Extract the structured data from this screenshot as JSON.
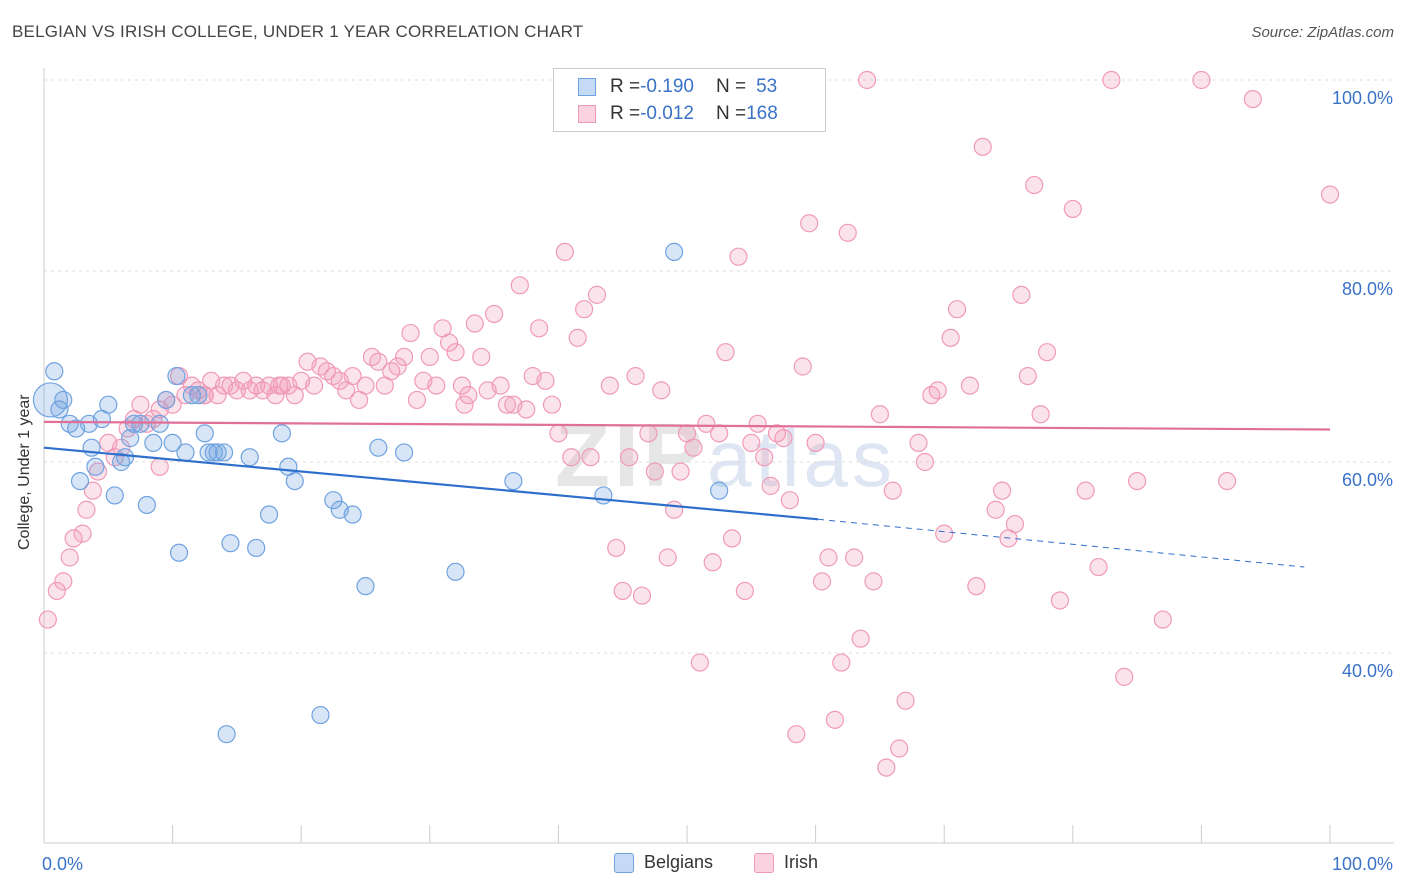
{
  "header": {
    "title": "BELGIAN VS IRISH COLLEGE, UNDER 1 YEAR CORRELATION CHART",
    "source": "Source: ZipAtlas.com"
  },
  "watermark": {
    "zip": "ZIP",
    "atlas": "atlas"
  },
  "legend": {
    "rows": [
      {
        "r_label": "R = ",
        "r_value": "-0.190",
        "n_label": "N = ",
        "n_value": "53"
      },
      {
        "r_label": "R = ",
        "r_value": "-0.012",
        "n_label": "N = ",
        "n_value": "168"
      }
    ]
  },
  "bottom_legend": {
    "belgians": "Belgians",
    "irish": "Irish"
  },
  "chart_data": {
    "type": "scatter",
    "title": "BELGIAN VS IRISH COLLEGE, UNDER 1 YEAR CORRELATION CHART",
    "ylabel": "College, Under 1 year",
    "xlabel": "",
    "xlim": [
      0,
      100
    ],
    "ylim": [
      20,
      102
    ],
    "x_tick_labels": [
      "0.0%",
      "100.0%"
    ],
    "y_ticks": [
      40,
      60,
      80,
      100
    ],
    "y_tick_labels": [
      "40.0%",
      "60.0%",
      "80.0%",
      "100.0%"
    ],
    "grid": true,
    "colors": {
      "belgians": "#6fa3e0",
      "irish": "#f09ab8",
      "belgians_line": "#2f6fcc",
      "irish_line": "#e0709a"
    },
    "series": [
      {
        "name": "Belgians",
        "trend": {
          "x": [
            0,
            60.2
          ],
          "y": [
            61.5,
            54.0
          ],
          "dashed_to_x": 98,
          "dashed_to_y": 49.0
        },
        "points": [
          [
            0.5,
            66.5
          ],
          [
            0.8,
            69.5
          ],
          [
            1.2,
            65.5
          ],
          [
            1.5,
            66.5
          ],
          [
            2,
            64
          ],
          [
            2.5,
            63.5
          ],
          [
            2.8,
            58
          ],
          [
            3.5,
            64
          ],
          [
            3.7,
            61.5
          ],
          [
            4,
            59.5
          ],
          [
            4.5,
            64.5
          ],
          [
            5,
            66
          ],
          [
            5.5,
            56.5
          ],
          [
            6,
            60
          ],
          [
            6.3,
            60.5
          ],
          [
            6.7,
            62.5
          ],
          [
            7,
            64
          ],
          [
            7.5,
            64
          ],
          [
            8,
            55.5
          ],
          [
            8.5,
            62
          ],
          [
            9,
            64
          ],
          [
            9.5,
            66.5
          ],
          [
            10,
            62
          ],
          [
            10.3,
            69
          ],
          [
            10.5,
            50.5
          ],
          [
            11,
            61
          ],
          [
            11.5,
            67
          ],
          [
            12,
            67
          ],
          [
            12.5,
            63
          ],
          [
            12.8,
            61
          ],
          [
            13.2,
            61
          ],
          [
            13.5,
            61
          ],
          [
            14,
            61
          ],
          [
            14.2,
            31.5
          ],
          [
            14.5,
            51.5
          ],
          [
            16,
            60.5
          ],
          [
            16.5,
            51
          ],
          [
            17.5,
            54.5
          ],
          [
            18.5,
            63
          ],
          [
            19,
            59.5
          ],
          [
            19.5,
            58
          ],
          [
            21.5,
            33.5
          ],
          [
            22.5,
            56
          ],
          [
            23,
            55
          ],
          [
            24,
            54.5
          ],
          [
            25,
            47
          ],
          [
            26,
            61.5
          ],
          [
            28,
            61
          ],
          [
            32,
            48.5
          ],
          [
            36.5,
            58
          ],
          [
            43.5,
            56.5
          ],
          [
            49,
            82
          ],
          [
            52.5,
            57
          ]
        ]
      },
      {
        "name": "Irish",
        "trend": {
          "x": [
            0,
            100
          ],
          "y": [
            64.2,
            63.4
          ]
        },
        "points": [
          [
            0.3,
            43.5
          ],
          [
            1,
            46.5
          ],
          [
            1.5,
            47.5
          ],
          [
            2,
            50
          ],
          [
            2.3,
            52
          ],
          [
            3,
            52.5
          ],
          [
            3.3,
            55
          ],
          [
            3.8,
            57
          ],
          [
            4.2,
            59
          ],
          [
            5,
            62
          ],
          [
            5.5,
            60.5
          ],
          [
            6,
            61.5
          ],
          [
            6.5,
            63.5
          ],
          [
            7,
            64.5
          ],
          [
            7.5,
            66
          ],
          [
            8,
            64
          ],
          [
            8.5,
            64.5
          ],
          [
            9,
            65.5
          ],
          [
            9.5,
            66.5
          ],
          [
            10,
            66
          ],
          [
            10.5,
            69
          ],
          [
            11,
            67
          ],
          [
            11.5,
            68
          ],
          [
            12,
            67.5
          ],
          [
            12.5,
            67
          ],
          [
            13,
            68.5
          ],
          [
            13.5,
            67
          ],
          [
            14,
            68
          ],
          [
            14.5,
            68
          ],
          [
            15,
            67.5
          ],
          [
            15.5,
            68.5
          ],
          [
            16,
            67.5
          ],
          [
            16.5,
            68
          ],
          [
            17,
            67.5
          ],
          [
            17.5,
            68
          ],
          [
            18,
            67
          ],
          [
            18.5,
            68
          ],
          [
            19,
            68
          ],
          [
            19.5,
            67
          ],
          [
            20,
            68.5
          ],
          [
            20.5,
            70.5
          ],
          [
            21,
            68
          ],
          [
            21.5,
            70
          ],
          [
            22,
            69.5
          ],
          [
            22.5,
            69
          ],
          [
            23,
            68.5
          ],
          [
            23.5,
            67.5
          ],
          [
            24,
            69
          ],
          [
            24.5,
            66.5
          ],
          [
            25,
            68
          ],
          [
            25.5,
            71
          ],
          [
            26,
            70.5
          ],
          [
            26.5,
            68
          ],
          [
            27,
            69.5
          ],
          [
            27.5,
            70
          ],
          [
            28,
            71
          ],
          [
            28.5,
            73.5
          ],
          [
            29,
            66.5
          ],
          [
            29.5,
            68.5
          ],
          [
            30,
            71
          ],
          [
            30.5,
            68
          ],
          [
            31,
            74
          ],
          [
            31.5,
            72.5
          ],
          [
            32,
            71.5
          ],
          [
            32.5,
            68
          ],
          [
            33,
            67
          ],
          [
            33.5,
            74.5
          ],
          [
            34,
            71
          ],
          [
            34.5,
            67.5
          ],
          [
            35,
            75.5
          ],
          [
            35.5,
            68
          ],
          [
            36,
            66
          ],
          [
            36.5,
            66
          ],
          [
            37,
            78.5
          ],
          [
            38,
            69
          ],
          [
            38.5,
            74
          ],
          [
            39,
            68.5
          ],
          [
            39.5,
            66
          ],
          [
            40,
            63
          ],
          [
            40.5,
            82
          ],
          [
            41,
            60.5
          ],
          [
            41.5,
            73
          ],
          [
            42,
            76
          ],
          [
            42.5,
            60.5
          ],
          [
            43,
            77.5
          ],
          [
            44,
            68
          ],
          [
            44.5,
            51
          ],
          [
            45,
            46.5
          ],
          [
            45.5,
            60.5
          ],
          [
            46,
            69
          ],
          [
            46.5,
            46
          ],
          [
            47,
            63
          ],
          [
            47.5,
            59
          ],
          [
            48,
            67.5
          ],
          [
            48.5,
            50
          ],
          [
            49,
            55
          ],
          [
            49.5,
            59
          ],
          [
            50,
            63
          ],
          [
            50.5,
            61.5
          ],
          [
            51,
            39
          ],
          [
            51.5,
            64
          ],
          [
            52,
            49.5
          ],
          [
            52.5,
            63
          ],
          [
            53,
            71.5
          ],
          [
            53.5,
            52
          ],
          [
            54,
            81.5
          ],
          [
            54.5,
            46.5
          ],
          [
            55,
            62
          ],
          [
            55.5,
            64
          ],
          [
            56,
            60.5
          ],
          [
            56.5,
            57.5
          ],
          [
            57,
            63
          ],
          [
            57.5,
            62.5
          ],
          [
            58,
            56
          ],
          [
            58.5,
            31.5
          ],
          [
            59,
            70
          ],
          [
            59.5,
            85
          ],
          [
            60,
            62
          ],
          [
            60.5,
            47.5
          ],
          [
            61,
            50
          ],
          [
            61.5,
            33
          ],
          [
            62,
            39
          ],
          [
            62.5,
            84
          ],
          [
            63,
            50
          ],
          [
            63.5,
            41.5
          ],
          [
            64,
            100
          ],
          [
            64.5,
            47.5
          ],
          [
            65,
            65
          ],
          [
            65.5,
            28
          ],
          [
            66,
            57
          ],
          [
            66.5,
            30
          ],
          [
            67,
            35
          ],
          [
            68,
            62
          ],
          [
            68.5,
            60
          ],
          [
            69,
            67
          ],
          [
            69.5,
            67.5
          ],
          [
            70,
            52.5
          ],
          [
            70.5,
            73
          ],
          [
            71,
            76
          ],
          [
            72,
            68
          ],
          [
            72.5,
            47
          ],
          [
            73,
            93
          ],
          [
            74,
            55
          ],
          [
            74.5,
            57
          ],
          [
            75,
            52
          ],
          [
            75.5,
            53.5
          ],
          [
            76,
            77.5
          ],
          [
            76.5,
            69
          ],
          [
            77,
            89
          ],
          [
            77.5,
            65
          ],
          [
            78,
            71.5
          ],
          [
            79,
            45.5
          ],
          [
            80,
            86.5
          ],
          [
            81,
            57
          ],
          [
            82,
            49
          ],
          [
            83,
            100
          ],
          [
            84,
            37.5
          ],
          [
            85,
            58
          ],
          [
            87,
            43.5
          ],
          [
            90,
            100
          ],
          [
            92,
            58
          ],
          [
            94,
            98
          ],
          [
            100,
            88
          ],
          [
            9,
            59.5
          ],
          [
            12.5,
            67
          ],
          [
            18.3,
            68
          ],
          [
            32.7,
            66
          ],
          [
            37.5,
            65.5
          ]
        ]
      }
    ]
  }
}
